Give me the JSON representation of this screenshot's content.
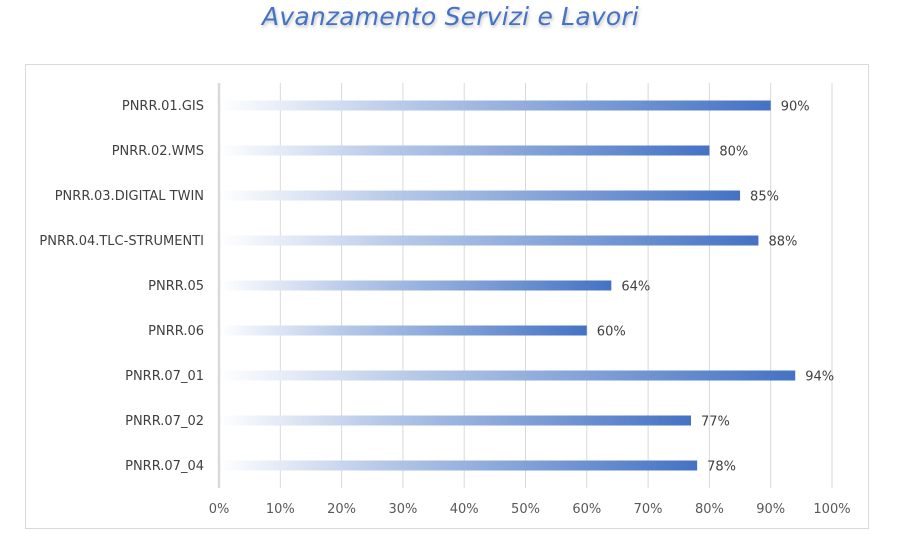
{
  "chart_data": {
    "type": "bar",
    "orientation": "horizontal",
    "title": "Avanzamento Servizi e Lavori",
    "xlabel": "",
    "ylabel": "",
    "categories": [
      "PNRR.01.GIS",
      "PNRR.02.WMS",
      "PNRR.03.DIGITAL TWIN",
      "PNRR.04.TLC-STRUMENTI",
      "PNRR.05",
      "PNRR.06",
      "PNRR.07_01",
      "PNRR.07_02",
      "PNRR.07_04"
    ],
    "values": [
      90,
      80,
      85,
      88,
      64,
      60,
      94,
      77,
      78
    ],
    "value_labels": [
      "90%",
      "80%",
      "85%",
      "88%",
      "64%",
      "60%",
      "94%",
      "77%",
      "78%"
    ],
    "xlim": [
      0,
      100
    ],
    "x_ticks": [
      "0%",
      "10%",
      "20%",
      "30%",
      "40%",
      "50%",
      "60%",
      "70%",
      "80%",
      "90%",
      "100%"
    ],
    "grid": true,
    "legend": "none",
    "colors": {
      "title": "#4472C4",
      "bar_end": "#4472C4",
      "bar_start": "#FFFFFF",
      "grid": "#D9D9D9",
      "axis": "#D9D9D9",
      "text": "#404040"
    }
  }
}
